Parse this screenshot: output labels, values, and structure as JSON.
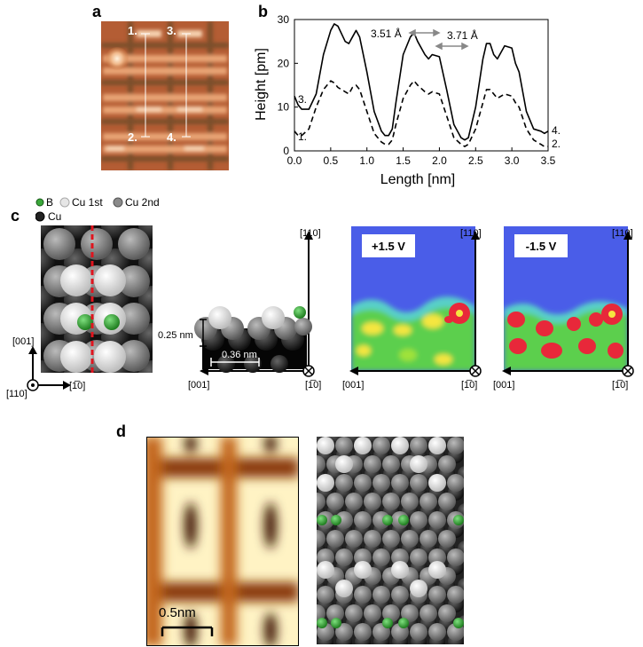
{
  "panels": {
    "a": {
      "label": "a",
      "markers": [
        "1.",
        "2.",
        "3.",
        "4."
      ]
    },
    "b": {
      "label": "b"
    },
    "c": {
      "label": "c",
      "legend": {
        "b": "B",
        "cu1": "Cu 1st",
        "cu2": "Cu 2nd",
        "cu": "Cu"
      },
      "axes": {
        "dir001": "[001]",
        "dir110": "[110]",
        "dir1m10": "[1̅0]"
      },
      "dims": {
        "height": "0.25 nm",
        "spacing": "0.36 nm"
      },
      "map_pos": "+1.5 V",
      "map_neg": "-1.5 V"
    },
    "d": {
      "label": "d",
      "scalebar": "0.5nm"
    }
  },
  "chart_data": {
    "type": "line",
    "xlabel": "Length [nm]",
    "ylabel": "Height [pm]",
    "xlim": [
      0,
      3.5
    ],
    "ylim": [
      0,
      30
    ],
    "xticks": [
      0.0,
      0.5,
      1.0,
      1.5,
      2.0,
      2.5,
      3.0,
      3.5
    ],
    "yticks": [
      0,
      10,
      20,
      30
    ],
    "annotations": [
      "3.51 Å",
      "3.71 Å"
    ],
    "series": [
      {
        "name": "3.",
        "end_label": "4.",
        "style": "solid",
        "x": [
          0.0,
          0.05,
          0.1,
          0.2,
          0.3,
          0.4,
          0.5,
          0.55,
          0.6,
          0.7,
          0.75,
          0.8,
          0.85,
          0.9,
          1.0,
          1.1,
          1.2,
          1.25,
          1.3,
          1.35,
          1.4,
          1.5,
          1.6,
          1.65,
          1.7,
          1.8,
          1.85,
          1.9,
          2.0,
          2.1,
          2.2,
          2.3,
          2.35,
          2.4,
          2.5,
          2.6,
          2.65,
          2.7,
          2.75,
          2.8,
          2.9,
          3.0,
          3.05,
          3.1,
          3.2,
          3.3,
          3.4,
          3.45,
          3.5
        ],
        "y": [
          12.5,
          10.5,
          9.5,
          9.5,
          13,
          22,
          27.5,
          29,
          28.5,
          25,
          24.5,
          26,
          27.5,
          26,
          18,
          9,
          4.5,
          3.5,
          3.5,
          5,
          11,
          22,
          26,
          27,
          25,
          22,
          21,
          22,
          21.5,
          14,
          6,
          3,
          2.5,
          3,
          10,
          21,
          24.5,
          24.5,
          22,
          21,
          24,
          23.5,
          20,
          18,
          9,
          5,
          4.5,
          4,
          4.5
        ]
      },
      {
        "name": "1.",
        "end_label": "2.",
        "style": "dashed",
        "x": [
          0.0,
          0.05,
          0.1,
          0.2,
          0.3,
          0.4,
          0.5,
          0.55,
          0.6,
          0.7,
          0.75,
          0.8,
          0.85,
          0.9,
          1.0,
          1.1,
          1.2,
          1.25,
          1.3,
          1.35,
          1.4,
          1.5,
          1.6,
          1.65,
          1.7,
          1.8,
          1.85,
          1.9,
          2.0,
          2.1,
          2.2,
          2.3,
          2.35,
          2.4,
          2.5,
          2.6,
          2.65,
          2.7,
          2.75,
          2.8,
          2.9,
          3.0,
          3.05,
          3.1,
          3.2,
          3.3,
          3.4,
          3.45,
          3.5
        ],
        "y": [
          4.5,
          3.5,
          3.5,
          5,
          10,
          14,
          16,
          15.5,
          14.5,
          13.5,
          13,
          14.5,
          15,
          14,
          9,
          4,
          2,
          1.5,
          1.5,
          2.5,
          6,
          12,
          15,
          16,
          15,
          13.5,
          13,
          13.5,
          13,
          8,
          3,
          1.5,
          1,
          1.5,
          5,
          11,
          14,
          14,
          13,
          12,
          13,
          12.5,
          11,
          10,
          5,
          2.5,
          1.5,
          1,
          1
        ]
      }
    ]
  }
}
